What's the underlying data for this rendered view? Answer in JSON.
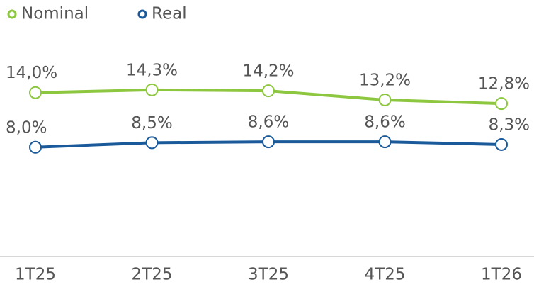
{
  "chart_data": {
    "type": "line",
    "categories": [
      "1T25",
      "2T25",
      "3T25",
      "4T25",
      "1T26"
    ],
    "series": [
      {
        "name": "Nominal",
        "color": "#8dc63f",
        "values": [
          14.0,
          14.3,
          14.2,
          13.2,
          12.8
        ],
        "value_labels": [
          "14,0%",
          "14,3%",
          "14,2%",
          "13,2%",
          "12,8%"
        ]
      },
      {
        "name": "Real",
        "color": "#1a5a9a",
        "values": [
          8.0,
          8.5,
          8.6,
          8.6,
          8.3
        ],
        "value_labels": [
          "8,0%",
          "8,5%",
          "8,6%",
          "8,6%",
          "8,3%"
        ]
      }
    ],
    "ylim": [
      -4,
      16
    ],
    "legend": "top-left"
  }
}
